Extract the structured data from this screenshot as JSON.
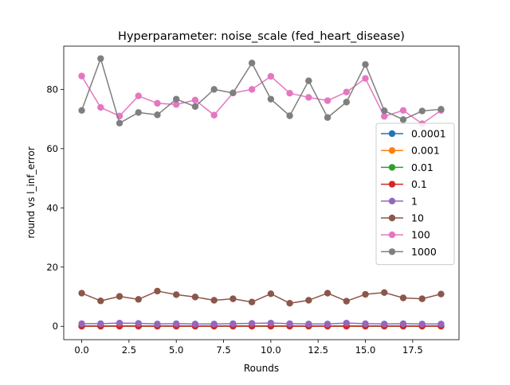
{
  "chart_data": {
    "type": "line",
    "title": "Hyperparameter: noise_scale (fed_heart_disease)",
    "xlabel": "Rounds",
    "ylabel": "round vs l_inf_error",
    "xlim": [
      -0.95,
      19.95
    ],
    "ylim": [
      -4.5,
      94.6
    ],
    "xticks": [
      0.0,
      2.5,
      5.0,
      7.5,
      10.0,
      12.5,
      15.0,
      17.5
    ],
    "xtick_labels": [
      "0.0",
      "2.5",
      "5.0",
      "7.5",
      "10.0",
      "12.5",
      "15.0",
      "17.5"
    ],
    "yticks": [
      0,
      20,
      40,
      60,
      80
    ],
    "ytick_labels": [
      "0",
      "20",
      "40",
      "60",
      "80"
    ],
    "grid": false,
    "legend_position": "center-right",
    "x": [
      0,
      1,
      2,
      3,
      4,
      5,
      6,
      7,
      8,
      9,
      10,
      11,
      12,
      13,
      14,
      15,
      16,
      17,
      18,
      19
    ],
    "series": [
      {
        "name": "0.0001",
        "color": "#1f77b4",
        "values": [
          0.05,
          0.05,
          0.05,
          0.05,
          0.05,
          0.05,
          0.05,
          0.05,
          0.05,
          0.05,
          0.05,
          0.05,
          0.05,
          0.05,
          0.05,
          0.05,
          0.05,
          0.05,
          0.05,
          0.05
        ]
      },
      {
        "name": "0.001",
        "color": "#ff7f0e",
        "values": [
          0.05,
          0.05,
          0.05,
          0.05,
          0.05,
          0.05,
          0.05,
          0.05,
          0.05,
          0.05,
          0.05,
          0.05,
          0.05,
          0.05,
          0.05,
          0.05,
          0.05,
          0.05,
          0.05,
          0.05
        ]
      },
      {
        "name": "0.01",
        "color": "#2ca02c",
        "values": [
          0.05,
          0.05,
          0.05,
          0.05,
          0.05,
          0.05,
          0.05,
          0.05,
          0.05,
          0.05,
          0.05,
          0.05,
          0.05,
          0.05,
          0.05,
          0.05,
          0.05,
          0.05,
          0.05,
          0.05
        ]
      },
      {
        "name": "0.1",
        "color": "#d62728",
        "values": [
          0.1,
          0.1,
          0.1,
          0.1,
          0.1,
          0.1,
          0.1,
          0.1,
          0.1,
          0.1,
          0.1,
          0.1,
          0.1,
          0.1,
          0.1,
          0.1,
          0.1,
          0.1,
          0.1,
          0.1
        ]
      },
      {
        "name": "1",
        "color": "#9467bd",
        "values": [
          0.9,
          0.9,
          1.1,
          1.0,
          0.8,
          0.9,
          0.8,
          0.8,
          0.9,
          1.0,
          1.1,
          0.9,
          0.8,
          0.8,
          1.1,
          0.9,
          0.8,
          0.9,
          0.8,
          0.8
        ]
      },
      {
        "name": "10",
        "color": "#8c564b",
        "values": [
          11.2,
          8.6,
          10.1,
          9.1,
          11.9,
          10.7,
          9.9,
          8.8,
          9.3,
          8.2,
          11.0,
          7.8,
          8.8,
          11.2,
          8.5,
          10.8,
          11.4,
          9.6,
          9.3,
          10.9
        ]
      },
      {
        "name": "100",
        "color": "#e377c2",
        "values": [
          84.5,
          73.9,
          71.0,
          77.8,
          75.3,
          74.9,
          76.4,
          71.3,
          78.8,
          80.0,
          84.4,
          78.7,
          77.3,
          76.2,
          79.1,
          83.7,
          70.9,
          72.9,
          68.4,
          72.9
        ]
      },
      {
        "name": "1000",
        "color": "#7f7f7f",
        "values": [
          72.9,
          90.4,
          68.6,
          72.2,
          71.4,
          76.7,
          74.2,
          80.0,
          78.8,
          88.9,
          76.7,
          71.1,
          82.9,
          70.5,
          75.7,
          88.4,
          72.8,
          69.8,
          72.7,
          73.3
        ]
      }
    ]
  }
}
